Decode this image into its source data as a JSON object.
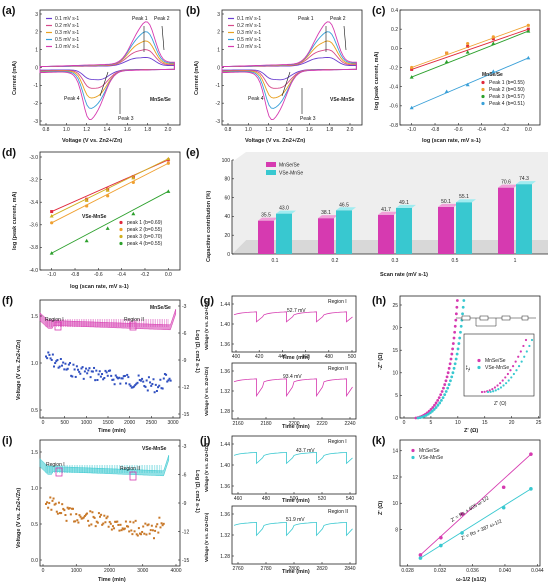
{
  "panels": {
    "a": {
      "label": "(a)",
      "xlabel": "Voltage (V vs. Zn2+/Zn)",
      "ylabel": "Current (mA)",
      "material": "MnSe/Se",
      "xticks": [
        "0.8",
        "1.0",
        "1.2",
        "1.4",
        "1.6",
        "1.8",
        "2.0"
      ],
      "yticks": [
        "3",
        "2",
        "1",
        "0",
        "-1",
        "-2",
        "-3"
      ],
      "legend": [
        "0.1 mV s-1",
        "0.2 mV s-1",
        "0.3 mV s-1",
        "0.5 mV s-1",
        "1.0 mV s-1"
      ],
      "peaks": [
        "Peak 1",
        "Peak 2",
        "Peak 3",
        "Peak 4"
      ]
    },
    "b": {
      "label": "(b)",
      "xlabel": "Voltage (V vs. Zn2+/Zn)",
      "ylabel": "Current (mA)",
      "material": "VSe-MnSe",
      "xticks": [
        "0.8",
        "1.0",
        "1.2",
        "1.4",
        "1.6",
        "1.8",
        "2.0"
      ],
      "yticks": [
        "3",
        "2",
        "1",
        "0",
        "-1",
        "-2",
        "-3"
      ],
      "legend": [
        "0.1 mV s-1",
        "0.2 mV s-1",
        "0.3 mV s-1",
        "0.5 mV s-1",
        "1.0 mV s-1"
      ],
      "peaks": [
        "Peak 1",
        "Peak 2",
        "Peak 3",
        "Peak 4"
      ]
    },
    "c": {
      "label": "(c)",
      "xlabel": "log (scan rate, mV s-1)",
      "ylabel": "log (peak current, mA)",
      "material": "MnSe/Se",
      "xticks": [
        "-1.0",
        "-0.8",
        "-0.6",
        "-0.4",
        "-0.2",
        "0.0"
      ],
      "yticks": [
        "0.4",
        "0.2",
        "0.0",
        "-0.2",
        "-0.4",
        "-0.6",
        "-0.8"
      ]
    },
    "d": {
      "label": "(d)",
      "xlabel": "log (scan rate, mV s-1)",
      "ylabel": "log (peak current, mA)",
      "material": "VSe-MnSe",
      "xticks": [
        "-1.0",
        "-0.8",
        "-0.6",
        "-0.4",
        "-0.2",
        "0.0"
      ],
      "yticks": [
        "-3.0",
        "-3.2",
        "-3.4",
        "-3.6",
        "-3.8",
        "-4.0"
      ]
    },
    "e": {
      "label": "(e)",
      "xlabel": "Scan rate (mV s-1)",
      "ylabel": "Capacitive contribution (%)",
      "yticks": [
        "100",
        "80",
        "60",
        "40",
        "20",
        "0"
      ]
    },
    "f": {
      "label": "(f)",
      "xlabel": "Time (min)",
      "ylabel": "Voltage (V vs. Zn2+/Zn)",
      "ylabel2": "Log (D, cm2 s-1)",
      "material": "MnSe/Se",
      "xticks": [
        "0",
        "500",
        "1000",
        "1500",
        "2000",
        "2500",
        "3000"
      ],
      "yticks": [
        "1.5",
        "1.0",
        "0.5"
      ],
      "yticks2": [
        "-3",
        "-6",
        "-9",
        "-12",
        "-15"
      ],
      "regions": [
        "Region I",
        "Region II"
      ]
    },
    "g": {
      "label": "(g)",
      "ylabel": "Voltage (V vs. Zn2+/Zn)",
      "xlabel": "Time (min)",
      "top": {
        "region": "Region I",
        "ann": "52.7 mV",
        "xticks": [
          "400",
          "420",
          "440",
          "460",
          "480",
          "500"
        ],
        "yticks": [
          "1.44",
          "1.40",
          "1.36"
        ]
      },
      "bottom": {
        "region": "Region II",
        "ann": "93.4 mV",
        "xticks": [
          "2160",
          "2180",
          "2200",
          "2220",
          "2240"
        ],
        "yticks": [
          "1.36",
          "1.32",
          "1.28"
        ]
      }
    },
    "h": {
      "label": "(h)",
      "xlabel": "Z' (Ω)",
      "ylabel": "-Z'' (Ω)",
      "xticks": [
        "0",
        "5",
        "10",
        "15",
        "20",
        "25"
      ],
      "yticks": [
        "25",
        "20",
        "15",
        "10",
        "5",
        "0"
      ],
      "legend": [
        "MnSe/Se",
        "VSe-MnSe"
      ],
      "inset_xlabel": "Z' (Ω)",
      "inset_ylabel": "-Z''"
    },
    "i": {
      "label": "(i)",
      "xlabel": "Time (min)",
      "ylabel": "Voltage (V vs. Zn2+/Zn)",
      "ylabel2": "Log (D, cm2 s-1)",
      "material": "VSe-MnSe",
      "xticks": [
        "0",
        "1000",
        "2000",
        "3000",
        "4000"
      ],
      "yticks": [
        "1.5",
        "1.0",
        "0.5",
        "0.0"
      ],
      "yticks2": [
        "-3",
        "-6",
        "-9",
        "-12",
        "-15"
      ],
      "regions": [
        "Region I",
        "Region II"
      ]
    },
    "j": {
      "label": "(j)",
      "ylabel": "Voltage (V vs. Zn2+/Zn)",
      "xlabel": "Time (min)",
      "top": {
        "region": "Region I",
        "ann": "43.7 mV",
        "xticks": [
          "460",
          "480",
          "500",
          "520",
          "540"
        ],
        "yticks": [
          "1.44",
          "1.40",
          "1.36"
        ]
      },
      "bottom": {
        "region": "Region II",
        "ann": "51.9 mV",
        "xticks": [
          "2760",
          "2780",
          "2800",
          "2820",
          "2840"
        ],
        "yticks": [
          "1.36",
          "1.32",
          "1.28"
        ]
      }
    },
    "k": {
      "label": "(k)",
      "xlabel": "ω-1/2 (s1/2)",
      "ylabel": "Z' (Ω)",
      "xticks": [
        "0.028",
        "0.032",
        "0.036",
        "0.040",
        "0.044"
      ],
      "yticks": [
        "14",
        "12",
        "10",
        "8"
      ],
      "legend": [
        "MnSe/Se",
        "VSe-MnSe"
      ],
      "fit1": "Z' = Rs + 605 ω-1/2",
      "fit2": "Z' = Rs + 387 ω-1/2"
    }
  },
  "colors": {
    "s1": "#6a3fd0",
    "s2": "#d64a8a",
    "s3": "#e8a020",
    "s4": "#3aa0d8",
    "s5": "#d63ab0",
    "red": "#e0283c",
    "orange": "#f0a030",
    "yellow": "#d0b020",
    "green": "#2ca02c",
    "magenta": "#d63ab0",
    "cyan": "#38c8d0",
    "brown": "#c87828",
    "blue": "#3050c0"
  },
  "chart_data": [
    {
      "type": "line",
      "panel": "c",
      "title": "",
      "series": [
        {
          "name": "Peak 1 (b=0.55)",
          "x": [
            -1.0,
            -0.7,
            -0.52,
            -0.3,
            0.0
          ],
          "y": [
            -0.22,
            -0.05,
            0.02,
            0.1,
            0.2
          ]
        },
        {
          "name": "Peak 2 (b=0.50)",
          "x": [
            -1.0,
            -0.7,
            -0.52,
            -0.3,
            0.0
          ],
          "y": [
            -0.2,
            -0.05,
            0.05,
            0.12,
            0.24
          ]
        },
        {
          "name": "Peak 3 (b=0.57)",
          "x": [
            -1.0,
            -0.7,
            -0.52,
            -0.3,
            0.0
          ],
          "y": [
            -0.3,
            -0.14,
            -0.04,
            0.05,
            0.18
          ]
        },
        {
          "name": "Peak 4 (b=0.51)",
          "x": [
            -1.0,
            -0.7,
            -0.52,
            -0.3,
            0.0
          ],
          "y": [
            -0.62,
            -0.45,
            -0.38,
            -0.24,
            -0.1
          ]
        }
      ]
    },
    {
      "type": "line",
      "panel": "d",
      "title": "",
      "series": [
        {
          "name": "peak 1 (b=0.69)",
          "x": [
            -1.0,
            -0.7,
            -0.52,
            -0.3,
            0.0
          ],
          "y": [
            -3.48,
            -3.37,
            -3.28,
            -3.17,
            -3.02
          ]
        },
        {
          "name": "peak 2 (b=0.55)",
          "x": [
            -1.0,
            -0.7,
            -0.52,
            -0.3,
            0.0
          ],
          "y": [
            -3.58,
            -3.43,
            -3.34,
            -3.22,
            -3.05
          ]
        },
        {
          "name": "peak 3 (b=0.70)",
          "x": [
            -1.0,
            -0.7,
            -0.52,
            -0.3,
            0.0
          ],
          "y": [
            -3.52,
            -3.38,
            -3.29,
            -3.18,
            -3.01
          ]
        },
        {
          "name": "peak 4 (b=0.55)",
          "x": [
            -1.0,
            -0.7,
            -0.52,
            -0.3,
            0.0
          ],
          "y": [
            -3.85,
            -3.74,
            -3.63,
            -3.5,
            -3.3
          ]
        }
      ]
    },
    {
      "type": "bar",
      "panel": "e",
      "categories": [
        "0.1",
        "0.2",
        "0.3",
        "0.5",
        "1"
      ],
      "series": [
        {
          "name": "MnSe/Se",
          "values": [
            35.5,
            38.1,
            41.7,
            50.1,
            70.6
          ]
        },
        {
          "name": "VSe-MnSe",
          "values": [
            43.0,
            46.5,
            49.1,
            55.1,
            74.3
          ]
        }
      ]
    },
    {
      "type": "scatter",
      "panel": "k",
      "series": [
        {
          "name": "MnSe/Se",
          "x": [
            0.0297,
            0.0324,
            0.0352,
            0.0407,
            0.0443
          ],
          "y": [
            7.2,
            8.3,
            9.8,
            11.5,
            13.6
          ]
        },
        {
          "name": "VSe-MnSe",
          "x": [
            0.0297,
            0.0324,
            0.0352,
            0.0407,
            0.0443
          ],
          "y": [
            7.0,
            7.8,
            8.6,
            10.2,
            11.4
          ]
        }
      ]
    }
  ]
}
